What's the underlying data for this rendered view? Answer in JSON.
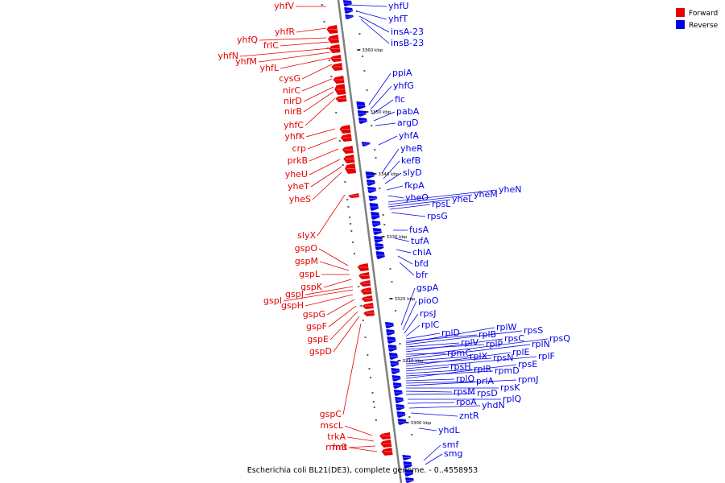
{
  "colors": {
    "forward": "#e60000",
    "reverse": "#0000e6",
    "backbone": "#808080"
  },
  "legend": {
    "forward": "Forward",
    "reverse": "Reverse"
  },
  "caption": "Escherichia coli BL21(DE3), complete genome. - 0..4558953",
  "kbp_labels": [
    "3360 kbp",
    "3350 kbp",
    "3340 kbp",
    "3330 kbp",
    "3320 kbp",
    "3310 kbp",
    "3300 kbp"
  ],
  "forward_genes": [
    "yhfV",
    "yhfR",
    "yhfQ",
    "frlC",
    "yhfN",
    "yhfM",
    "yhfL",
    "cysG",
    "nirC",
    "nirD",
    "nirB",
    "yhfC",
    "yhfK",
    "crp",
    "prkB",
    "yheU",
    "yheT",
    "yheS",
    "slyX",
    "gspO",
    "gspM",
    "gspL",
    "gspK",
    "gspJ",
    "gspI",
    "gspH",
    "gspG",
    "gspF",
    "gspE",
    "gspD",
    "gspC",
    "mscL",
    "trkA",
    "rrmB",
    "fmt"
  ],
  "reverse_genes": [
    "yhfU",
    "yhfT",
    "insA-23",
    "insB-23",
    "ppiA",
    "yhfG",
    "fic",
    "pabA",
    "argD",
    "yhfA",
    "yheR",
    "kefB",
    "slyD",
    "fkpA",
    "yheO",
    "yheN",
    "yheM",
    "yheL",
    "rpsL",
    "rpsG",
    "fusA",
    "tufA",
    "chiA",
    "bfd",
    "bfr",
    "gspA",
    "pioO",
    "rpsJ",
    "rplC",
    "rplD",
    "rplB",
    "rplW",
    "rpsS",
    "rplV",
    "rplP",
    "rpsC",
    "rpmC",
    "rpsQ",
    "rplN",
    "rplX",
    "rpsN",
    "rplE",
    "rplF",
    "rpsH",
    "rplR",
    "rpmD",
    "rpsE",
    "rplO",
    "prlA",
    "rpmJ",
    "rpsK",
    "rpsM",
    "rpsD",
    "rplQ",
    "rpoA",
    "yhdN",
    "zntR",
    "yhdL",
    "smf",
    "smg"
  ]
}
